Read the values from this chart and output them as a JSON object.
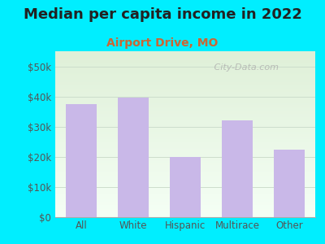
{
  "title": "Median per capita income in 2022",
  "subtitle": "Airport Drive, MO",
  "categories": [
    "All",
    "White",
    "Hispanic",
    "Multirace",
    "Other"
  ],
  "values": [
    37500,
    39500,
    20000,
    32000,
    22500
  ],
  "bar_color": "#c9b8e8",
  "background_color": "#00eeff",
  "title_color": "#222222",
  "subtitle_color": "#cc6633",
  "tick_color": "#555555",
  "ylim": [
    0,
    55000
  ],
  "yticks": [
    0,
    10000,
    20000,
    30000,
    40000,
    50000
  ],
  "ytick_labels": [
    "$0",
    "$10k",
    "$20k",
    "$30k",
    "$40k",
    "$50k"
  ],
  "title_fontsize": 13,
  "subtitle_fontsize": 10,
  "tick_fontsize": 8.5,
  "watermark": " City-Data.com",
  "grid_color": "#ccddcc",
  "plot_bg_top": "#f5fff5",
  "plot_bg_bottom": "#dff0d8"
}
